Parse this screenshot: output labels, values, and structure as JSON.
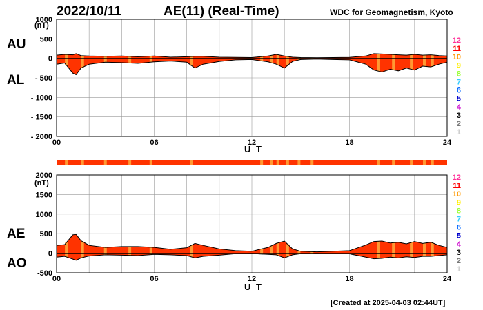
{
  "header": {
    "date": "2022/10/11",
    "title": "AE(11) (Real-Time)",
    "source": "WDC for Geomagnetism, Kyoto",
    "created": "[Created at 2025-04-03 02:44UT]"
  },
  "legend": {
    "labels": [
      "12",
      "11",
      "10",
      "9",
      "8",
      "7",
      "6",
      "5",
      "4",
      "3",
      "2",
      "1"
    ],
    "colors": [
      "#ff3399",
      "#ff0000",
      "#ff9900",
      "#ffee00",
      "#99ff33",
      "#33ccff",
      "#0066ff",
      "#0000cc",
      "#cc00cc",
      "#000000",
      "#777777",
      "#cccccc"
    ]
  },
  "colors": {
    "fill": "#ff3300",
    "outline": "#000000",
    "highlight": "#ff9933",
    "grid": "#999999",
    "band": "#ff3300"
  },
  "chart_data": [
    {
      "type": "area",
      "name": "AU/AL",
      "labels_left": [
        "AU",
        "AL"
      ],
      "unit": "(nT)",
      "xlabel": "U T",
      "x_ticks": [
        "00",
        "06",
        "12",
        "18",
        "24"
      ],
      "y_ticks": [
        "1000",
        "500",
        "0",
        "- 500",
        "- 1000",
        "- 1500",
        "- 2000"
      ],
      "ylim": [
        -2000,
        1000
      ],
      "xlim": [
        0,
        24
      ],
      "grid": true,
      "series": [
        {
          "name": "AU",
          "x": [
            0,
            0.5,
            1,
            1.2,
            1.5,
            2,
            3,
            4,
            5,
            6,
            7,
            8,
            8.5,
            9,
            10,
            11,
            12,
            12.5,
            13,
            13.5,
            14,
            14.5,
            15,
            16,
            17,
            18,
            19,
            19.5,
            20,
            20.5,
            21,
            21.5,
            22,
            22.5,
            23,
            23.5,
            24
          ],
          "y": [
            80,
            100,
            90,
            120,
            70,
            60,
            50,
            60,
            40,
            60,
            30,
            40,
            50,
            50,
            30,
            25,
            20,
            40,
            60,
            100,
            60,
            30,
            20,
            15,
            20,
            25,
            60,
            120,
            110,
            100,
            90,
            80,
            100,
            80,
            90,
            70,
            60
          ]
        },
        {
          "name": "AL",
          "x": [
            0,
            0.5,
            1,
            1.2,
            1.5,
            2,
            3,
            4,
            5,
            6,
            7,
            8,
            8.5,
            9,
            10,
            11,
            12,
            12.5,
            13,
            13.5,
            14,
            14.5,
            15,
            16,
            17,
            18,
            19,
            19.5,
            20,
            20.5,
            21,
            21.5,
            22,
            22.5,
            23,
            23.5,
            24
          ],
          "y": [
            -150,
            -120,
            -380,
            -420,
            -250,
            -150,
            -100,
            -110,
            -130,
            -90,
            -70,
            -100,
            -250,
            -150,
            -80,
            -40,
            -30,
            -60,
            -90,
            -150,
            -250,
            -80,
            -30,
            -20,
            -30,
            -40,
            -150,
            -300,
            -350,
            -280,
            -320,
            -250,
            -300,
            -200,
            -220,
            -150,
            -100
          ]
        }
      ],
      "highlights_hours": [
        0.6,
        1.6,
        3.0,
        4.5,
        5.8,
        8.3,
        12.6,
        13.2,
        13.6,
        14.2,
        14.9,
        15.7,
        19.8,
        20.7,
        21.8,
        22.6,
        23.1
      ]
    },
    {
      "type": "area",
      "name": "AE/AO",
      "labels_left": [
        "AE",
        "AO"
      ],
      "unit": "(nT)",
      "xlabel": "U T",
      "x_ticks": [
        "00",
        "06",
        "12",
        "18",
        "24"
      ],
      "y_ticks": [
        "2000",
        "1500",
        "1000",
        "500",
        "0",
        "-500"
      ],
      "ylim": [
        -500,
        2000
      ],
      "xlim": [
        0,
        24
      ],
      "grid": true,
      "series": [
        {
          "name": "AE",
          "x": [
            0,
            0.5,
            1,
            1.2,
            1.5,
            2,
            3,
            4,
            5,
            6,
            7,
            8,
            8.5,
            9,
            10,
            11,
            12,
            12.5,
            13,
            13.5,
            14,
            14.5,
            15,
            16,
            17,
            18,
            19,
            19.5,
            20,
            20.5,
            21,
            21.5,
            22,
            22.5,
            23,
            23.5,
            24
          ],
          "y": [
            200,
            220,
            470,
            480,
            320,
            200,
            150,
            170,
            170,
            150,
            100,
            140,
            250,
            200,
            110,
            65,
            50,
            100,
            150,
            250,
            310,
            110,
            50,
            35,
            50,
            65,
            210,
            300,
            310,
            260,
            280,
            240,
            300,
            250,
            280,
            200,
            150
          ]
        },
        {
          "name": "AO",
          "x": [
            0,
            0.5,
            1,
            1.2,
            1.5,
            2,
            3,
            4,
            5,
            6,
            7,
            8,
            8.5,
            9,
            10,
            11,
            12,
            12.5,
            13,
            13.5,
            14,
            14.5,
            15,
            16,
            17,
            18,
            19,
            19.5,
            20,
            20.5,
            21,
            21.5,
            22,
            22.5,
            23,
            23.5,
            24
          ],
          "y": [
            -100,
            -80,
            -150,
            -180,
            -120,
            -70,
            -40,
            -50,
            -60,
            -30,
            -40,
            -60,
            -120,
            -80,
            -50,
            -10,
            -5,
            -20,
            -30,
            -40,
            -120,
            -40,
            -10,
            -5,
            -10,
            -15,
            -100,
            -140,
            -130,
            -100,
            -120,
            -90,
            -110,
            -80,
            -80,
            -60,
            -40
          ]
        }
      ],
      "highlights_hours": [
        0.6,
        1.6,
        3.0,
        4.5,
        5.8,
        8.3,
        12.6,
        13.2,
        13.6,
        14.2,
        14.9,
        15.7,
        19.8,
        20.7,
        21.8,
        22.6,
        23.1
      ]
    }
  ]
}
